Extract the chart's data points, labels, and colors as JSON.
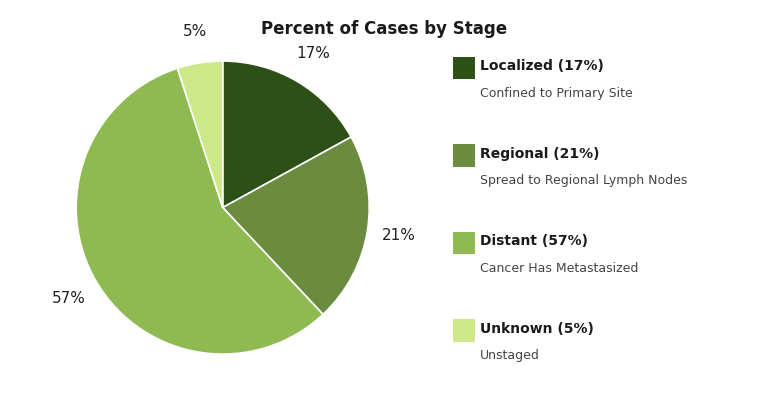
{
  "title": "Percent of Cases by Stage",
  "slices": [
    17,
    21,
    57,
    5
  ],
  "colors": [
    "#2d5016",
    "#6b8c3e",
    "#8fba52",
    "#cde888"
  ],
  "labels": [
    "17%",
    "21%",
    "57%",
    "5%"
  ],
  "legend_titles": [
    "Localized (17%)",
    "Regional (21%)",
    "Distant (57%)",
    "Unknown (5%)"
  ],
  "legend_subtitles": [
    "Confined to Primary Site",
    "Spread to Regional Lymph Nodes",
    "Cancer Has Metastasized",
    "Unstaged"
  ],
  "background_color": "#ffffff",
  "title_fontsize": 12,
  "label_fontsize": 11,
  "legend_title_fontsize": 10,
  "legend_sub_fontsize": 9
}
